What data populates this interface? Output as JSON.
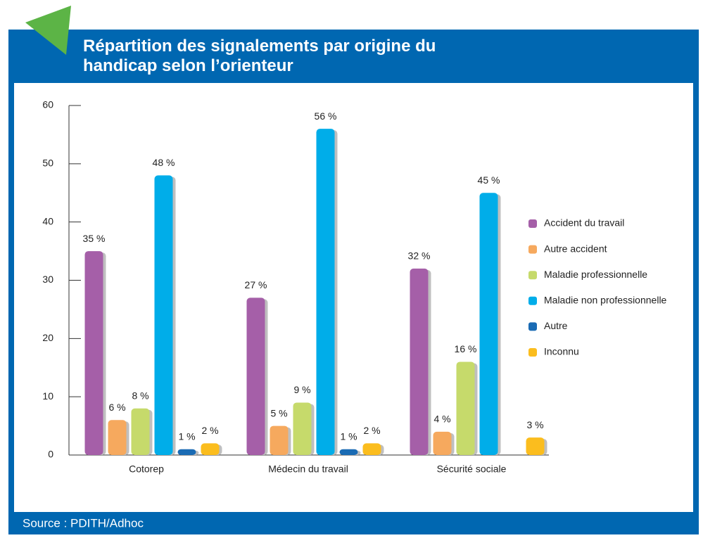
{
  "chart_data": {
    "type": "bar",
    "title": "Répartition des signalements par origine du handicap selon l’orienteur",
    "source": "Source : PDITH/Adhoc",
    "categories": [
      "Cotorep",
      "Médecin du travail",
      "Sécurité sociale"
    ],
    "series": [
      {
        "name": "Accident du travail",
        "color": "#a55fa8",
        "values": [
          35,
          27,
          32
        ],
        "value_labels": [
          "35 %",
          "27 %",
          "32 %"
        ]
      },
      {
        "name": "Autre accident",
        "color": "#f6a95e",
        "values": [
          6,
          5,
          4
        ],
        "value_labels": [
          "6 %",
          "5 %",
          "4 %"
        ]
      },
      {
        "name": "Maladie professionnelle",
        "color": "#c6da6b",
        "values": [
          8,
          9,
          16
        ],
        "value_labels": [
          "8 %",
          "9 %",
          "16 %"
        ]
      },
      {
        "name": "Maladie non professionnelle",
        "color": "#00ade9",
        "values": [
          48,
          56,
          45
        ],
        "value_labels": [
          "48 %",
          "56 %",
          "45 %"
        ]
      },
      {
        "name": "Autre",
        "color": "#1a6bb4",
        "values": [
          1,
          1,
          null
        ],
        "value_labels": [
          "1 %",
          "1 %",
          null
        ]
      },
      {
        "name": "Inconnu",
        "color": "#fbbd1e",
        "values": [
          2,
          2,
          3
        ],
        "value_labels": [
          "2 %",
          "2 %",
          "3 %"
        ]
      }
    ],
    "ylim": [
      0,
      60
    ],
    "yticks": [
      0,
      10,
      20,
      30,
      40,
      50,
      60
    ],
    "legend": "right"
  }
}
